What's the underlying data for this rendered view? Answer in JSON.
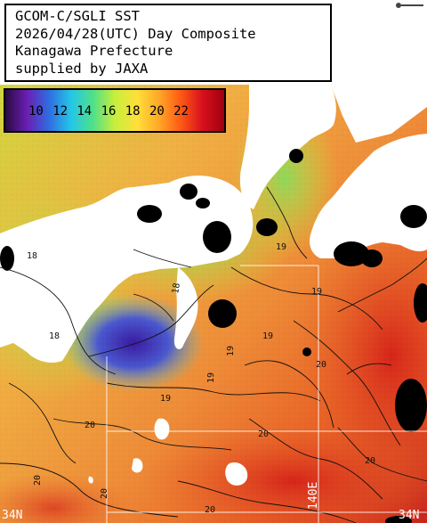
{
  "title": {
    "line1": "GCOM-C/SGLI SST",
    "line2": "2026/04/28(UTC) Day Composite",
    "line3": "Kanagawa Prefecture",
    "line4": "supplied by JAXA"
  },
  "color_scale": {
    "labels": [
      "10",
      "12",
      "14",
      "16",
      "18",
      "20",
      "22"
    ],
    "colors": [
      "#2a0a40",
      "#6a1fb5",
      "#2f6de0",
      "#24c6e8",
      "#4fe08a",
      "#c7ee3c",
      "#ffe03a",
      "#ffa928",
      "#ff5a14",
      "#d8101e",
      "#a00010"
    ]
  },
  "map": {
    "land_color": "#ffffff",
    "no_data_color": "#000000",
    "grid_color": "#ffffff",
    "contour_color": "#111111",
    "contour_labels": [
      "18",
      "18",
      "19",
      "19",
      "19",
      "19",
      "20",
      "20",
      "20",
      "20",
      "20",
      "20",
      "19",
      "18",
      "20",
      "19"
    ],
    "latitude_label": "34N",
    "longitude_label": "140E",
    "corner_label": "34N"
  }
}
